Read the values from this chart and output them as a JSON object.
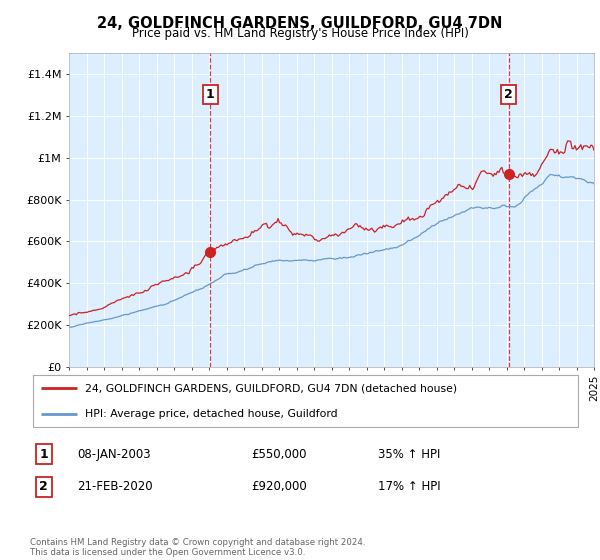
{
  "title": "24, GOLDFINCH GARDENS, GUILDFORD, GU4 7DN",
  "subtitle": "Price paid vs. HM Land Registry's House Price Index (HPI)",
  "ylabel_ticks": [
    "£0",
    "£200K",
    "£400K",
    "£600K",
    "£800K",
    "£1M",
    "£1.2M",
    "£1.4M"
  ],
  "ytick_values": [
    0,
    200000,
    400000,
    600000,
    800000,
    1000000,
    1200000,
    1400000
  ],
  "ylim": [
    0,
    1500000
  ],
  "x_start_year": 1995,
  "x_end_year": 2025,
  "red_line_color": "#cc2222",
  "blue_line_color": "#6699cc",
  "chart_bg_color": "#ddeeff",
  "vline_color": "#cc2222",
  "sale1_year": 2003.08,
  "sale1_value": 550000,
  "sale2_year": 2020.12,
  "sale2_value": 920000,
  "legend_label1": "24, GOLDFINCH GARDENS, GUILDFORD, GU4 7DN (detached house)",
  "legend_label2": "HPI: Average price, detached house, Guildford",
  "table_row1_num": "1",
  "table_row1_date": "08-JAN-2003",
  "table_row1_price": "£550,000",
  "table_row1_hpi": "35% ↑ HPI",
  "table_row2_num": "2",
  "table_row2_date": "21-FEB-2020",
  "table_row2_price": "£920,000",
  "table_row2_hpi": "17% ↑ HPI",
  "footer": "Contains HM Land Registry data © Crown copyright and database right 2024.\nThis data is licensed under the Open Government Licence v3.0.",
  "background_color": "#ffffff",
  "grid_color": "#ffffff"
}
